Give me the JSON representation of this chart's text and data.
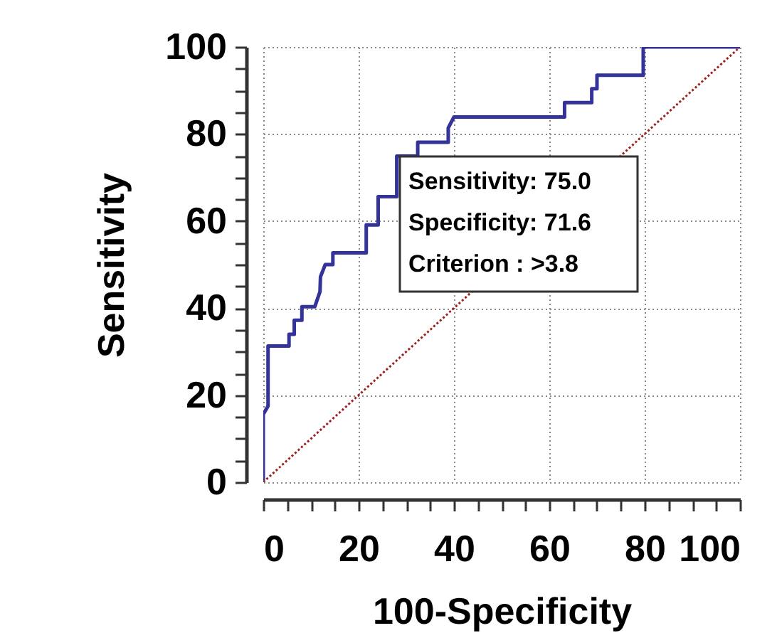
{
  "chart_data": {
    "type": "line",
    "xlabel": "100-Specificity",
    "ylabel": "Sensitivity",
    "series": [
      {
        "color": "#333399",
        "line_style": "solid",
        "x": [
          0,
          0,
          1,
          1,
          5.4,
          5.4,
          6.5,
          6.5,
          8.1,
          8.1,
          10.8,
          11.9,
          12,
          13,
          14.6,
          14.6,
          21.6,
          21.6,
          24.1,
          24.1,
          28,
          28,
          32.4,
          32.4,
          38.8,
          38.8,
          40,
          63.2,
          63.2,
          68.9,
          68.9,
          70,
          70,
          79.7,
          79.7,
          100
        ],
        "values": [
          0,
          15.6,
          17.5,
          31.3,
          31.3,
          34,
          34,
          37.2,
          37.2,
          40.3,
          40.3,
          43.8,
          47.2,
          50,
          50,
          52.7,
          52.7,
          59.1,
          59.1,
          65.6,
          65.6,
          74.9,
          74.9,
          78.1,
          78.1,
          81.4,
          83.9,
          83.9,
          87.2,
          87.2,
          90.4,
          90.4,
          93.5,
          93.5,
          100,
          100
        ]
      },
      {
        "color": "#a02020",
        "line_style": "dotted",
        "x": [
          0,
          100
        ],
        "values": [
          0,
          100
        ]
      }
    ],
    "xlim": [
      0,
      100
    ],
    "ylim": [
      0,
      100
    ],
    "xticks": [
      0,
      {
        "value": 5,
        "label": null
      },
      {
        "value": 10,
        "label": null
      },
      {
        "value": 15,
        "label": null
      },
      20,
      {
        "value": 25,
        "label": null
      },
      {
        "value": 30,
        "label": null
      },
      {
        "value": 35,
        "label": null
      },
      40,
      {
        "value": 45,
        "label": null
      },
      {
        "value": 50,
        "label": null
      },
      {
        "value": 55,
        "label": null
      },
      60,
      {
        "value": 65,
        "label": null
      },
      {
        "value": 70,
        "label": null
      },
      {
        "value": 75,
        "label": null
      },
      80,
      {
        "value": 85,
        "label": null
      },
      {
        "value": 90,
        "label": null
      },
      {
        "value": 95,
        "label": null
      },
      100
    ],
    "yticks": [
      0,
      {
        "value": 5,
        "label": null
      },
      {
        "value": 10,
        "label": null
      },
      {
        "value": 15,
        "label": null
      },
      20,
      {
        "value": 25,
        "label": null
      },
      {
        "value": 30,
        "label": null
      },
      {
        "value": 35,
        "label": null
      },
      40,
      {
        "value": 45,
        "label": null
      },
      {
        "value": 50,
        "label": null
      },
      {
        "value": 55,
        "label": null
      },
      60,
      {
        "value": 65,
        "label": null
      },
      {
        "value": 70,
        "label": null
      },
      {
        "value": 75,
        "label": null
      },
      80,
      {
        "value": 85,
        "label": null
      },
      {
        "value": 90,
        "label": null
      },
      {
        "value": 95,
        "label": null
      },
      100
    ],
    "grid": true,
    "marker": "none",
    "annotations": [
      "Sensitivity: 75.0",
      "Specificity: 71.6",
      "Criterion : >3.8"
    ]
  }
}
